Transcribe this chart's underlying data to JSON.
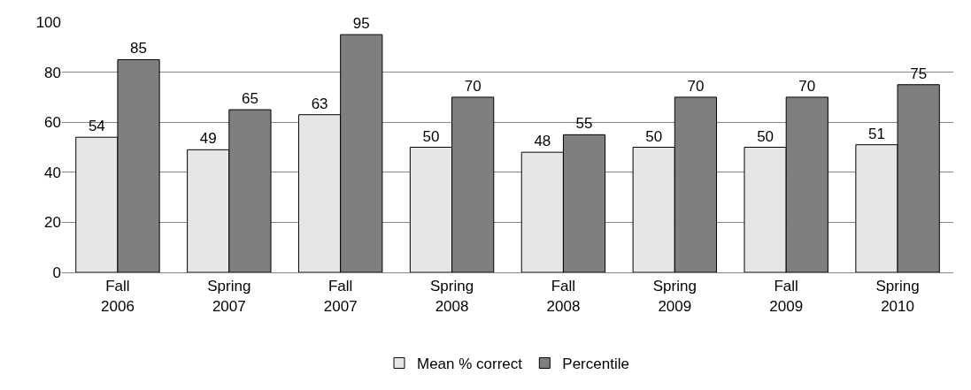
{
  "chart_data": {
    "type": "bar",
    "categories": [
      "Fall 2006",
      "Spring 2007",
      "Fall 2007",
      "Spring 2008",
      "Fall 2008",
      "Spring 2009",
      "Fall 2009",
      "Spring 2010"
    ],
    "series": [
      {
        "name": "Mean % correct",
        "color": "#e6e6e6",
        "values": [
          54,
          49,
          63,
          50,
          48,
          50,
          50,
          51
        ]
      },
      {
        "name": "Percentile",
        "color": "#7f7f7f",
        "values": [
          85,
          65,
          95,
          70,
          55,
          70,
          70,
          75
        ]
      }
    ],
    "ylim": [
      0,
      100
    ],
    "yticks": [
      0,
      20,
      40,
      60,
      80,
      100
    ],
    "grid": "y",
    "legend": "bottom",
    "data_labels": true
  }
}
